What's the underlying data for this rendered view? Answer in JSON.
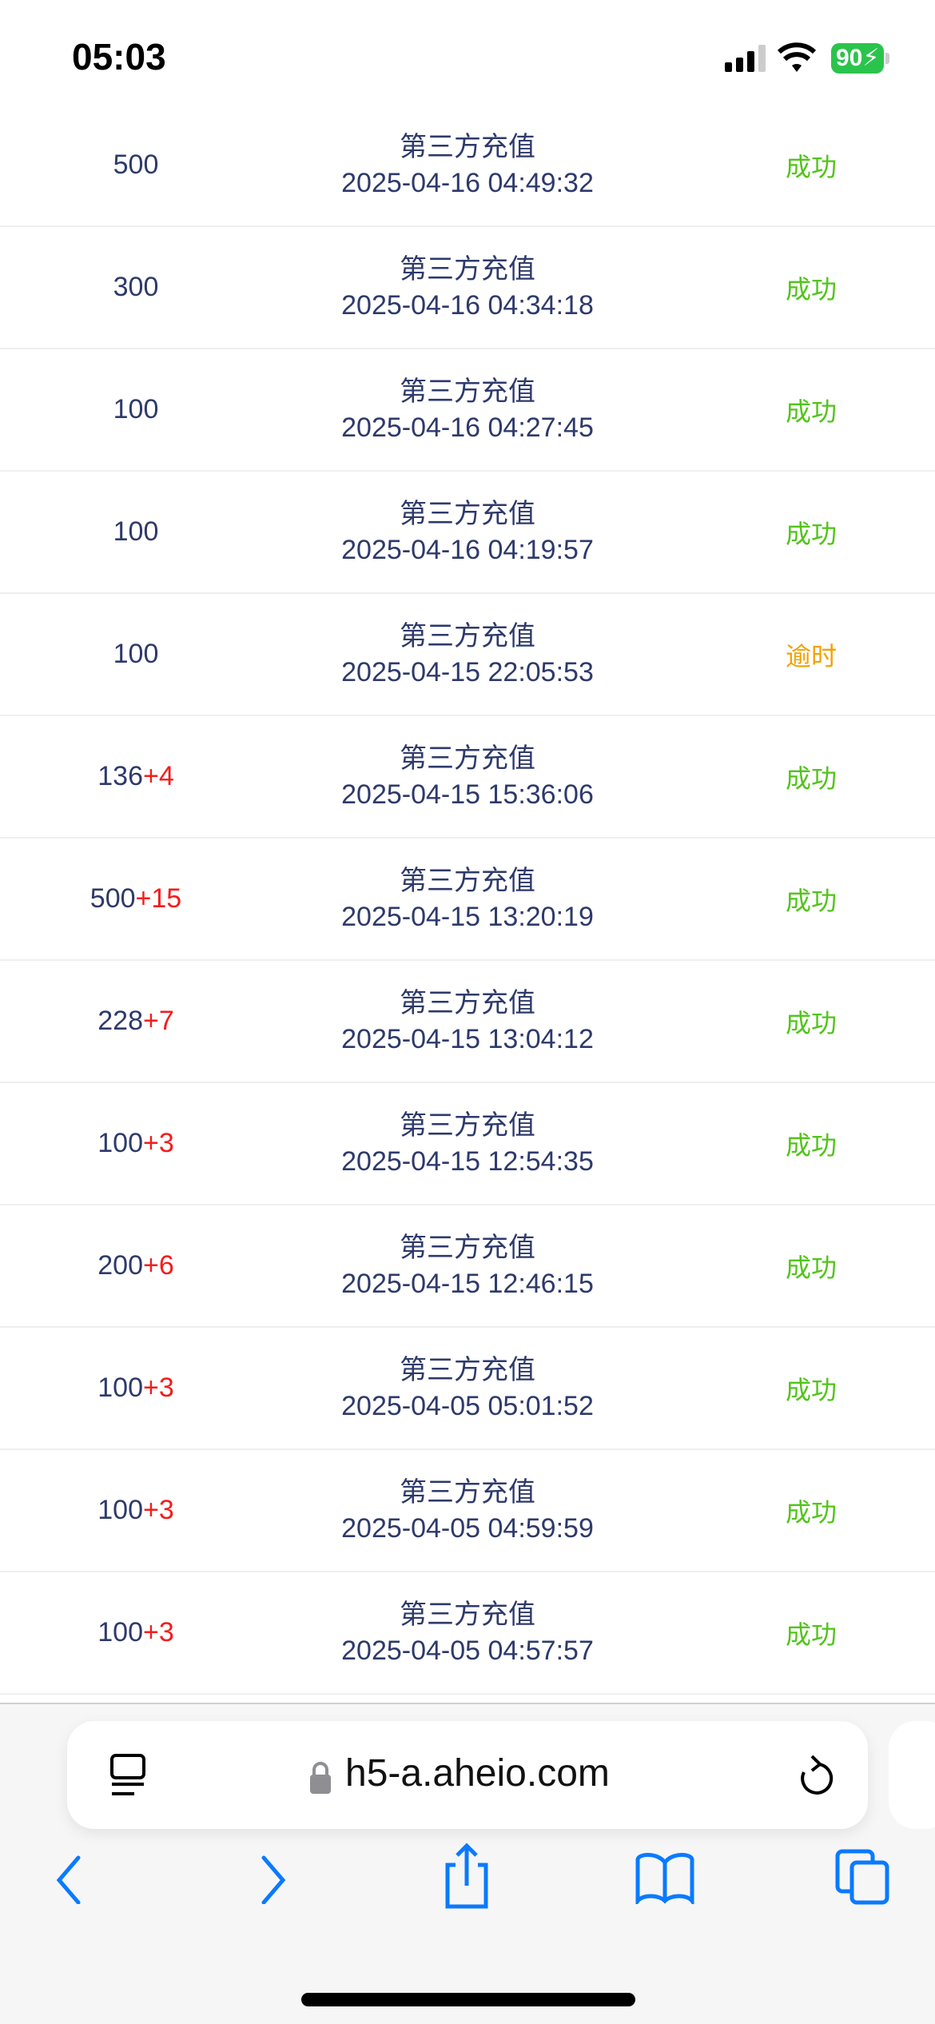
{
  "status_bar": {
    "time": "05:03",
    "battery": "90"
  },
  "rows": [
    {
      "amount": "500",
      "bonus": "",
      "type": "第三方充值",
      "datetime": "2025-04-16 04:49:32",
      "status": "成功",
      "state": "ok"
    },
    {
      "amount": "300",
      "bonus": "",
      "type": "第三方充值",
      "datetime": "2025-04-16 04:34:18",
      "status": "成功",
      "state": "ok"
    },
    {
      "amount": "100",
      "bonus": "",
      "type": "第三方充值",
      "datetime": "2025-04-16 04:27:45",
      "status": "成功",
      "state": "ok"
    },
    {
      "amount": "100",
      "bonus": "",
      "type": "第三方充值",
      "datetime": "2025-04-16 04:19:57",
      "status": "成功",
      "state": "ok"
    },
    {
      "amount": "100",
      "bonus": "",
      "type": "第三方充值",
      "datetime": "2025-04-15 22:05:53",
      "status": "逾时",
      "state": "late"
    },
    {
      "amount": "136",
      "bonus": "+4",
      "type": "第三方充值",
      "datetime": "2025-04-15 15:36:06",
      "status": "成功",
      "state": "ok"
    },
    {
      "amount": "500",
      "bonus": "+15",
      "type": "第三方充值",
      "datetime": "2025-04-15 13:20:19",
      "status": "成功",
      "state": "ok"
    },
    {
      "amount": "228",
      "bonus": "+7",
      "type": "第三方充值",
      "datetime": "2025-04-15 13:04:12",
      "status": "成功",
      "state": "ok"
    },
    {
      "amount": "100",
      "bonus": "+3",
      "type": "第三方充值",
      "datetime": "2025-04-15 12:54:35",
      "status": "成功",
      "state": "ok"
    },
    {
      "amount": "200",
      "bonus": "+6",
      "type": "第三方充值",
      "datetime": "2025-04-15 12:46:15",
      "status": "成功",
      "state": "ok"
    },
    {
      "amount": "100",
      "bonus": "+3",
      "type": "第三方充值",
      "datetime": "2025-04-05 05:01:52",
      "status": "成功",
      "state": "ok"
    },
    {
      "amount": "100",
      "bonus": "+3",
      "type": "第三方充值",
      "datetime": "2025-04-05 04:59:59",
      "status": "成功",
      "state": "ok"
    },
    {
      "amount": "100",
      "bonus": "+3",
      "type": "第三方充值",
      "datetime": "2025-04-05 04:57:57",
      "status": "成功",
      "state": "ok"
    }
  ],
  "colors": {
    "text": "#2e3a6b",
    "success": "#52c41a",
    "timeout": "#f5a000",
    "bonus": "#f51c1c",
    "accent": "#0a7aff"
  },
  "browser": {
    "url": "h5-a.aheio.com"
  }
}
